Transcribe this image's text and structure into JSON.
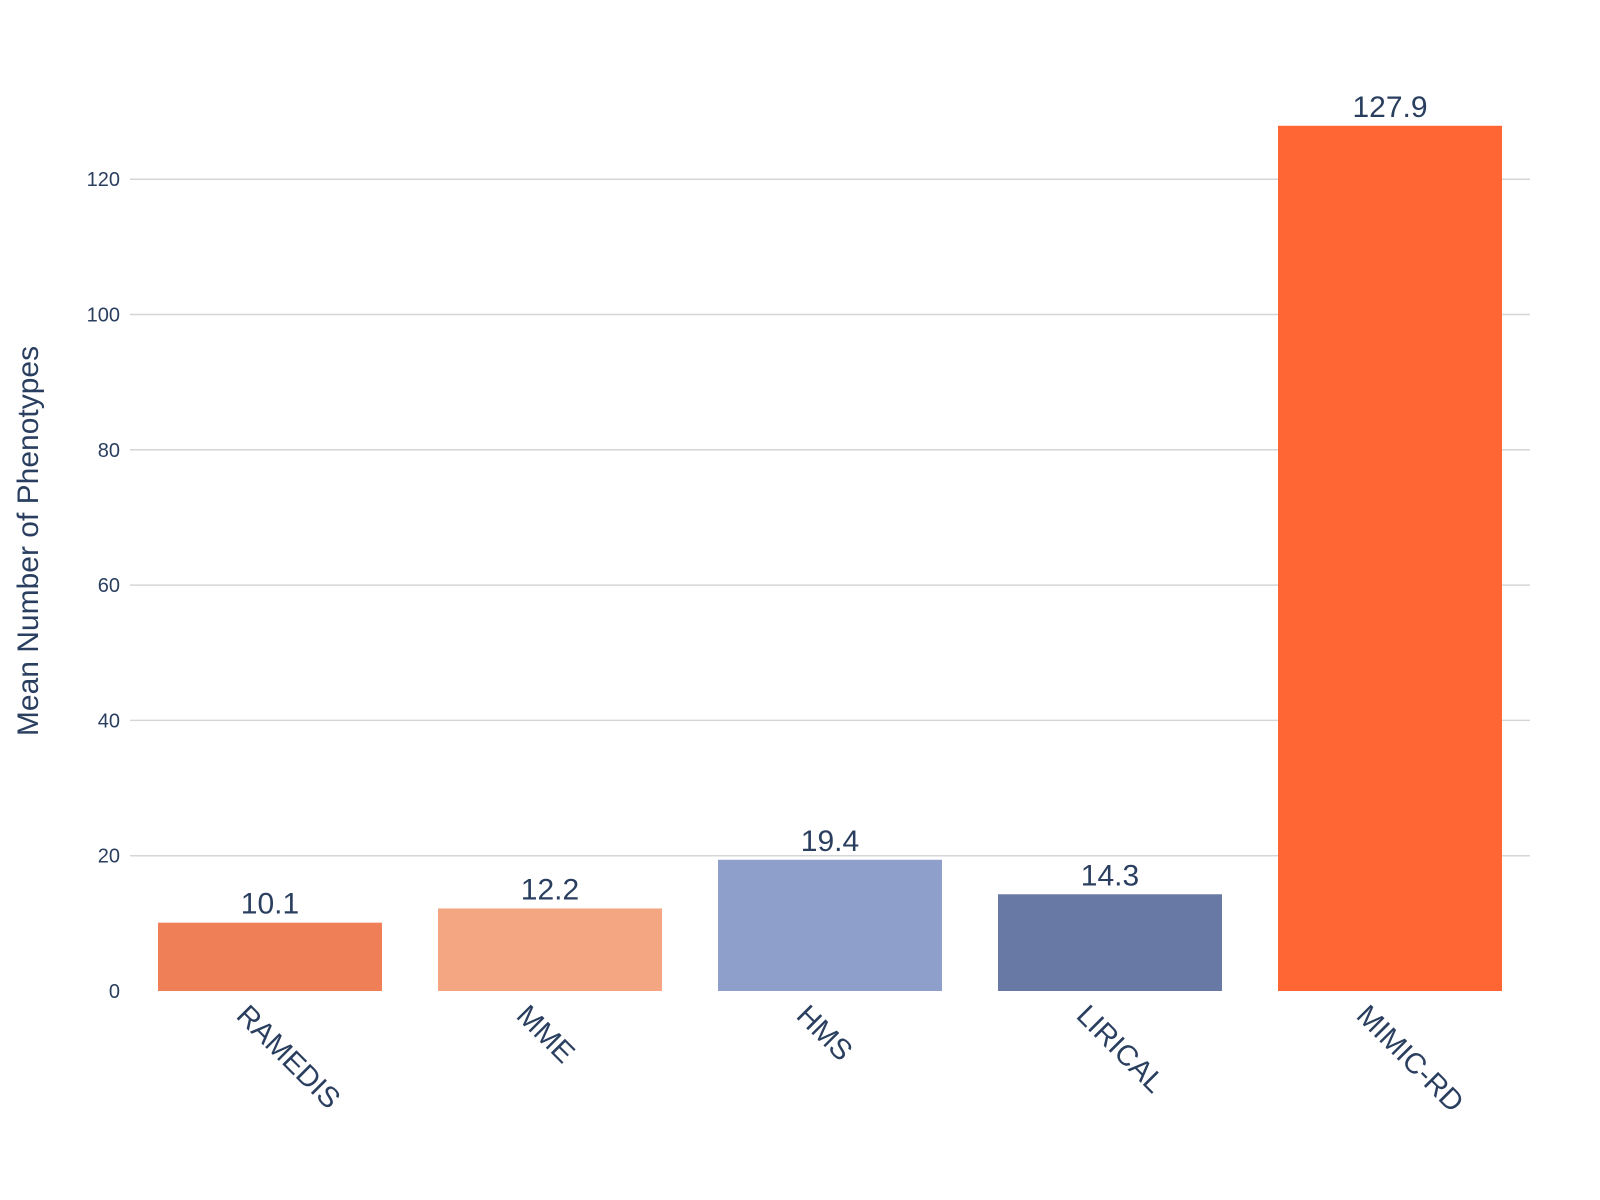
{
  "chart_data": {
    "type": "bar",
    "title": "",
    "xlabel": "",
    "ylabel": "Mean Number of Phenotypes",
    "categories": [
      "RAMEDIS",
      "MME",
      "HMS",
      "LIRICAL",
      "MIMIC-RD"
    ],
    "values": [
      10.1,
      12.2,
      19.4,
      14.3,
      127.9
    ],
    "data_labels": [
      "10.1",
      "12.2",
      "19.4",
      "14.3",
      "127.9"
    ],
    "colors": [
      "#ef7f57",
      "#f4a683",
      "#8e9fcb",
      "#6879a5",
      "#ff6633"
    ],
    "ylim": [
      0,
      127.9
    ],
    "yticks": [
      0,
      20,
      40,
      60,
      80,
      100,
      120
    ],
    "ytick_labels": [
      "0",
      "20",
      "40",
      "60",
      "80",
      "100",
      "120"
    ],
    "grid": true,
    "legend": "none",
    "category_label_rotation": "45"
  }
}
